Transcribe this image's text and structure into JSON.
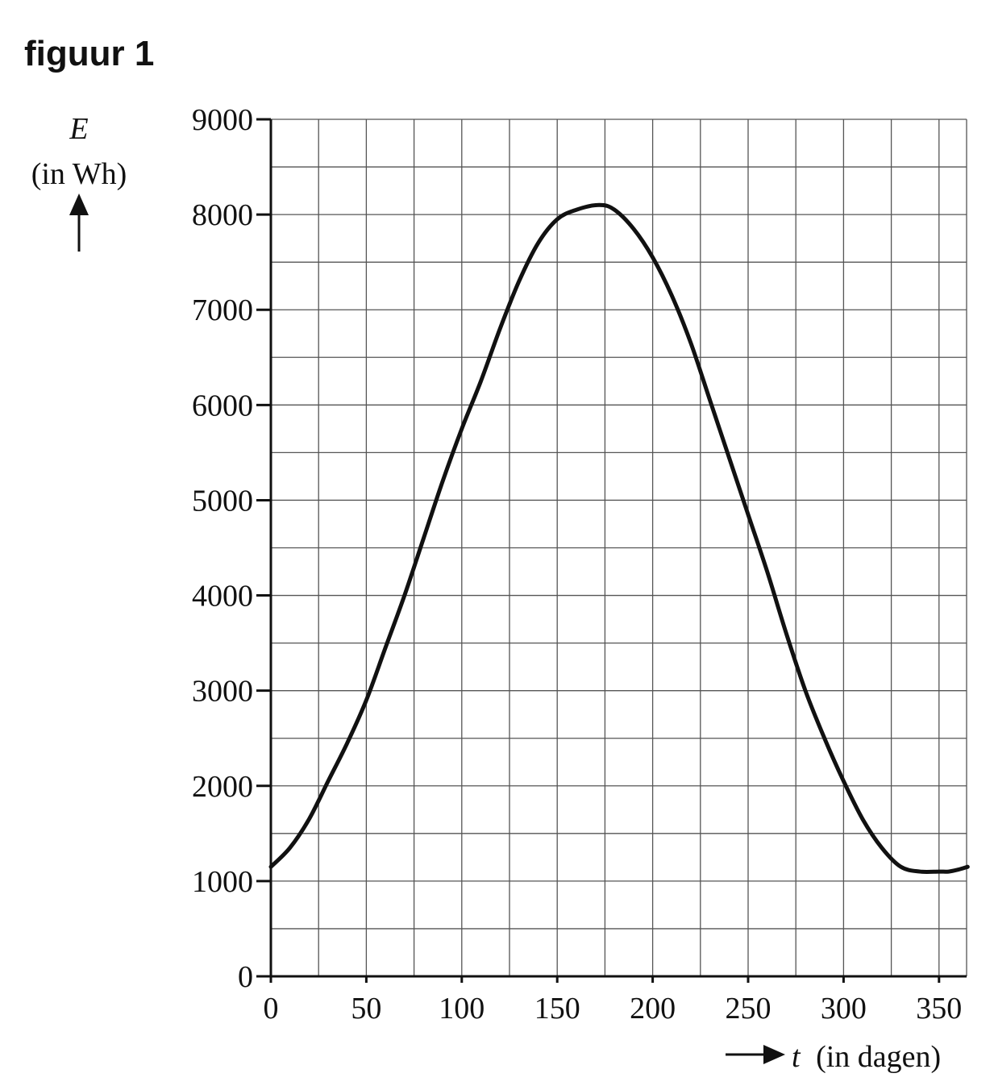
{
  "figure_title": "figuur 1",
  "chart_data": {
    "type": "line",
    "title": "",
    "ylabel_symbol": "E",
    "ylabel_unit": "(in Wh)",
    "xlabel_symbol": "t",
    "xlabel_unit": "(in dagen)",
    "xlim": [
      0,
      365
    ],
    "ylim": [
      0,
      9000
    ],
    "x_ticks": [
      0,
      50,
      100,
      150,
      200,
      250,
      300,
      350
    ],
    "y_ticks": [
      0,
      1000,
      2000,
      3000,
      4000,
      5000,
      6000,
      7000,
      8000,
      9000
    ],
    "x_tick_labels": [
      "0",
      "50",
      "100",
      "150",
      "200",
      "250",
      "300",
      "350"
    ],
    "y_tick_labels": [
      "0",
      "1000",
      "2000",
      "3000",
      "4000",
      "5000",
      "6000",
      "7000",
      "8000",
      "9000"
    ],
    "grid": true,
    "grid_x_step": 25,
    "grid_y_step": 500,
    "series": [
      {
        "x": [
          0,
          10,
          20,
          30,
          40,
          50,
          60,
          70,
          80,
          90,
          100,
          110,
          120,
          130,
          140,
          150,
          160,
          172,
          180,
          190,
          200,
          210,
          220,
          230,
          240,
          250,
          260,
          270,
          280,
          290,
          300,
          310,
          320,
          330,
          340,
          350,
          355,
          360,
          365
        ],
        "y": [
          1150,
          1350,
          1650,
          2050,
          2450,
          2900,
          3450,
          4000,
          4600,
          5200,
          5750,
          6250,
          6800,
          7300,
          7700,
          7950,
          8050,
          8100,
          8050,
          7850,
          7550,
          7150,
          6650,
          6050,
          5450,
          4850,
          4250,
          3600,
          3000,
          2500,
          2050,
          1650,
          1350,
          1150,
          1100,
          1100,
          1100,
          1120,
          1150
        ],
        "color": "#111111"
      }
    ]
  }
}
